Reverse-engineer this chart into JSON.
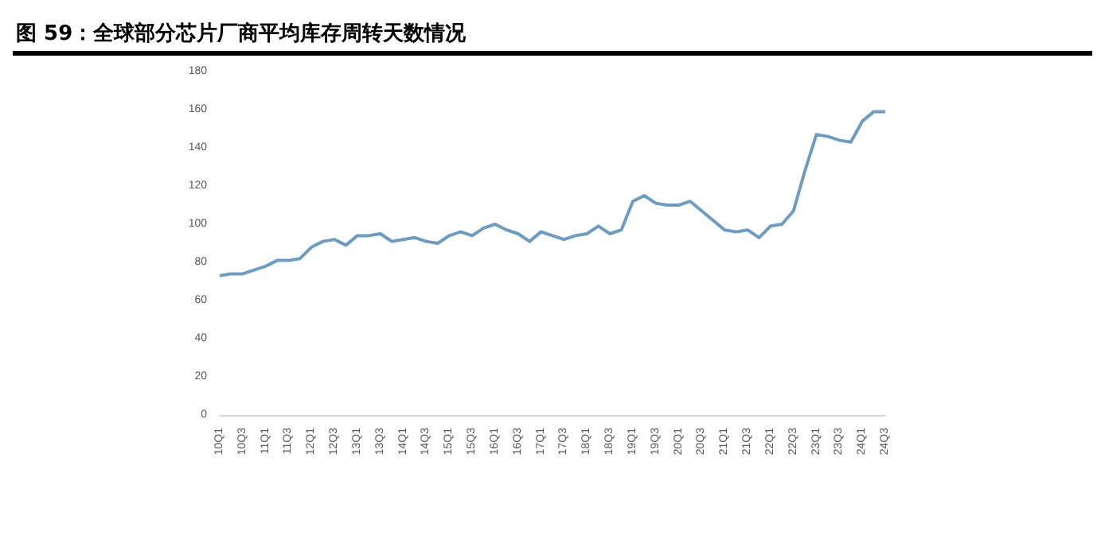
{
  "chart_data": {
    "type": "line",
    "title": "图 59：全球部分芯片厂商平均库存周转天数情况",
    "categories": [
      "10Q1",
      null,
      "10Q3",
      null,
      "11Q1",
      null,
      "11Q3",
      null,
      "12Q1",
      null,
      "12Q3",
      null,
      "13Q1",
      null,
      "13Q3",
      null,
      "14Q1",
      null,
      "14Q3",
      null,
      "15Q1",
      null,
      "15Q3",
      null,
      "16Q1",
      null,
      "16Q3",
      null,
      "17Q1",
      null,
      "17Q3",
      null,
      "18Q1",
      null,
      "18Q3",
      null,
      "19Q1",
      null,
      "19Q3",
      null,
      "20Q1",
      null,
      "20Q3",
      null,
      "21Q1",
      null,
      "21Q3",
      null,
      "22Q1",
      null,
      "22Q3",
      null,
      "23Q1",
      null,
      "23Q3",
      null,
      "24Q1",
      null,
      "24Q3"
    ],
    "series": [
      {
        "color": "#6a9cc4",
        "values": [
          73,
          74,
          74,
          76,
          78,
          81,
          81,
          82,
          88,
          91,
          92,
          89,
          94,
          94,
          95,
          91,
          92,
          93,
          91,
          90,
          94,
          96,
          94,
          98,
          100,
          97,
          95,
          91,
          96,
          94,
          92,
          94,
          95,
          99,
          95,
          97,
          112,
          115,
          111,
          110,
          110,
          112,
          107,
          102,
          97,
          96,
          97,
          93,
          99,
          100,
          107,
          128,
          147,
          146,
          144,
          143,
          154,
          159,
          159
        ]
      }
    ],
    "ylim": [
      0,
      180
    ],
    "yticks": [
      0,
      20,
      40,
      60,
      80,
      100,
      120,
      140,
      160,
      180
    ],
    "grid": false,
    "marker": "none",
    "line_style": "solid"
  }
}
